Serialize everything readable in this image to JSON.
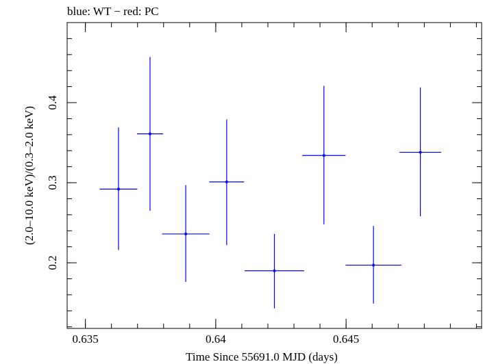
{
  "chart_data": {
    "type": "scatter",
    "title": "blue: WT − red: PC",
    "xlabel": "Time Since 55691.0 MJD (days)",
    "ylabel": "(2.0–10.0 keV)/(0.3–2.0 keV)",
    "xlim": [
      0.6343,
      0.6502
    ],
    "ylim": [
      0.118,
      0.5
    ],
    "x_ticks": [
      {
        "value": 0.635,
        "label": "0.635"
      },
      {
        "value": 0.64,
        "label": "0.64"
      },
      {
        "value": 0.645,
        "label": "0.645"
      }
    ],
    "y_ticks": [
      {
        "value": 0.2,
        "label": "0.2"
      },
      {
        "value": 0.3,
        "label": "0.3"
      },
      {
        "value": 0.4,
        "label": "0.4"
      }
    ],
    "grid": false,
    "series": [
      {
        "name": "WT",
        "color": "#0000ee",
        "points": [
          {
            "x": 0.63627,
            "xerr": 0.00072,
            "y": 0.292,
            "ylo": 0.216,
            "yhi": 0.369
          },
          {
            "x": 0.63748,
            "xerr": 0.0005,
            "y": 0.361,
            "ylo": 0.265,
            "yhi": 0.457
          },
          {
            "x": 0.63885,
            "xerr": 0.00091,
            "y": 0.236,
            "ylo": 0.176,
            "yhi": 0.297
          },
          {
            "x": 0.64042,
            "xerr": 0.00067,
            "y": 0.301,
            "ylo": 0.222,
            "yhi": 0.379
          },
          {
            "x": 0.64225,
            "xerr": 0.00114,
            "y": 0.19,
            "ylo": 0.143,
            "yhi": 0.236
          },
          {
            "x": 0.64415,
            "xerr": 0.00083,
            "y": 0.334,
            "ylo": 0.248,
            "yhi": 0.421
          },
          {
            "x": 0.64605,
            "xerr": 0.00107,
            "y": 0.197,
            "ylo": 0.149,
            "yhi": 0.246
          },
          {
            "x": 0.64785,
            "xerr": 0.0008,
            "y": 0.338,
            "ylo": 0.258,
            "yhi": 0.419
          }
        ]
      }
    ]
  }
}
